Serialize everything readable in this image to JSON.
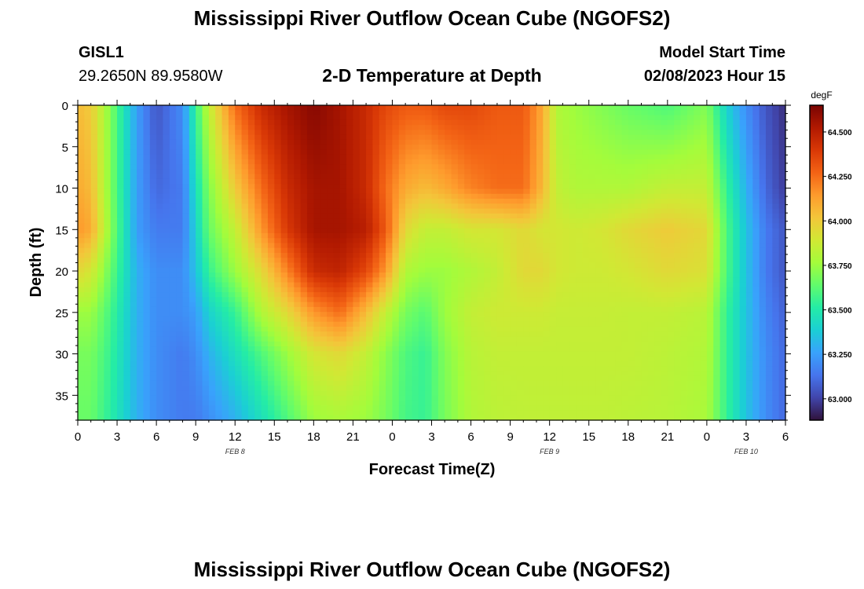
{
  "header": {
    "title": "Mississippi River Outflow Ocean Cube (NGOFS2)",
    "station": "GISL1",
    "coords": "29.2650N  89.9580W",
    "subtitle": "2-D Temperature at Depth",
    "model_start_label": "Model Start Time",
    "model_start_value": "02/08/2023 Hour 15"
  },
  "footer": {
    "title": "Mississippi River Outflow Ocean Cube (NGOFS2)"
  },
  "chart_data": {
    "type": "heatmap",
    "xlabel": "Forecast Time(Z)",
    "ylabel": "Depth (ft)",
    "x_range_hours": [
      0,
      54
    ],
    "y_range_ft": [
      0,
      38
    ],
    "x_ticks": [
      "0",
      "3",
      "6",
      "9",
      "12",
      "15",
      "18",
      "21",
      "0",
      "3",
      "6",
      "9",
      "12",
      "15",
      "18",
      "21",
      "0",
      "3",
      "6"
    ],
    "y_ticks": [
      "0",
      "5",
      "10",
      "15",
      "20",
      "25",
      "30",
      "35"
    ],
    "date_labels": [
      {
        "hour": 12,
        "text": "FEB 8"
      },
      {
        "hour": 36,
        "text": "FEB 9"
      },
      {
        "hour": 51,
        "text": "FEB 10"
      }
    ],
    "colorbar": {
      "unit": "degF",
      "min": 62.88,
      "max": 64.65,
      "ticks": [
        "63.000",
        "63.250",
        "63.500",
        "63.750",
        "64.000",
        "64.250",
        "64.500"
      ],
      "tick_values": [
        63.0,
        63.25,
        63.5,
        63.75,
        64.0,
        64.25,
        64.5
      ],
      "colors": [
        "#30123b",
        "#4145ab",
        "#4675ed",
        "#39a2fc",
        "#1bcfd4",
        "#24eca6",
        "#61fc6c",
        "#a4fc3b",
        "#d1e834",
        "#f3c63a",
        "#fe9b2d",
        "#f36315",
        "#d93806",
        "#b11901",
        "#7a0402"
      ]
    },
    "depth_levels_ft": [
      0,
      10,
      15,
      20,
      25,
      30,
      38
    ],
    "hour_columns": [
      0,
      1,
      2.5,
      4.5,
      6,
      8,
      9,
      10,
      12,
      14,
      16,
      18,
      20,
      22,
      23.5,
      25,
      26.5,
      28,
      30,
      32,
      34,
      35.5,
      36.5,
      38,
      40,
      42,
      45,
      48,
      49.5,
      51,
      52.5,
      54
    ],
    "temperature_grid_degF": [
      [
        64.05,
        64.0,
        63.7,
        63.25,
        63.05,
        63.2,
        63.55,
        63.85,
        64.25,
        64.45,
        64.55,
        64.62,
        64.55,
        64.45,
        64.35,
        64.3,
        64.3,
        64.35,
        64.35,
        64.3,
        64.3,
        64.1,
        63.8,
        63.75,
        63.7,
        63.65,
        63.6,
        63.7,
        63.4,
        63.2,
        63.05,
        62.95
      ],
      [
        64.1,
        64.05,
        63.7,
        63.25,
        63.1,
        63.15,
        63.45,
        63.7,
        64.0,
        64.25,
        64.45,
        64.55,
        64.55,
        64.45,
        64.25,
        64.1,
        64.05,
        64.1,
        64.2,
        64.25,
        64.25,
        64.05,
        63.85,
        63.8,
        63.8,
        63.8,
        63.85,
        63.85,
        63.55,
        63.3,
        63.1,
        62.98
      ],
      [
        64.15,
        64.1,
        63.72,
        63.25,
        63.15,
        63.15,
        63.4,
        63.65,
        63.85,
        64.15,
        64.4,
        64.55,
        64.55,
        64.5,
        64.3,
        63.95,
        63.85,
        63.85,
        63.9,
        63.9,
        63.95,
        63.9,
        63.9,
        63.88,
        63.9,
        63.95,
        64.0,
        63.95,
        63.6,
        63.35,
        63.15,
        63.05
      ],
      [
        63.95,
        63.9,
        63.65,
        63.3,
        63.2,
        63.2,
        63.35,
        63.55,
        63.75,
        63.95,
        64.2,
        64.45,
        64.48,
        64.35,
        64.15,
        63.8,
        63.75,
        63.75,
        63.8,
        63.85,
        63.95,
        63.95,
        63.9,
        63.88,
        63.88,
        63.9,
        63.95,
        63.92,
        63.6,
        63.35,
        63.15,
        63.05
      ],
      [
        63.75,
        63.75,
        63.58,
        63.3,
        63.2,
        63.2,
        63.25,
        63.4,
        63.55,
        63.8,
        63.95,
        64.15,
        64.25,
        64.05,
        63.85,
        63.68,
        63.62,
        63.75,
        63.85,
        63.88,
        63.88,
        63.88,
        63.86,
        63.86,
        63.86,
        63.85,
        63.85,
        63.82,
        63.55,
        63.35,
        63.18,
        63.08
      ],
      [
        63.68,
        63.68,
        63.55,
        63.3,
        63.2,
        63.15,
        63.2,
        63.3,
        63.45,
        63.6,
        63.75,
        63.9,
        63.95,
        63.85,
        63.72,
        63.6,
        63.55,
        63.7,
        63.82,
        63.85,
        63.85,
        63.85,
        63.85,
        63.85,
        63.85,
        63.85,
        63.83,
        63.8,
        63.55,
        63.35,
        63.2,
        63.1
      ],
      [
        63.65,
        63.65,
        63.52,
        63.3,
        63.2,
        63.15,
        63.15,
        63.2,
        63.3,
        63.45,
        63.6,
        63.75,
        63.78,
        63.75,
        63.68,
        63.58,
        63.55,
        63.68,
        63.8,
        63.83,
        63.84,
        63.84,
        63.84,
        63.84,
        63.84,
        63.83,
        63.82,
        63.78,
        63.55,
        63.35,
        63.2,
        63.1
      ]
    ]
  }
}
